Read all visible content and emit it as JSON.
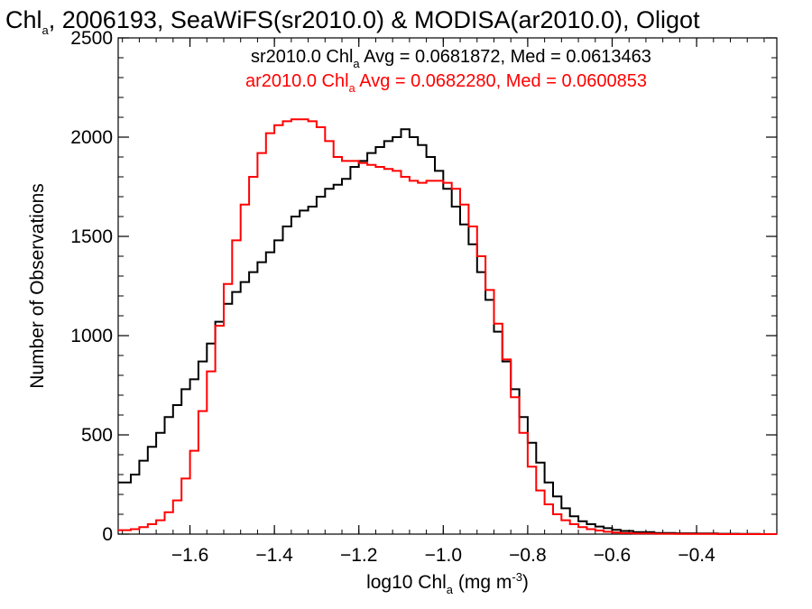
{
  "chart_data": {
    "type": "line",
    "title": {
      "main": "Chl",
      "sub": "a",
      "rest": ", 2006193, SeaWiFS(sr2010.0) & MODISA(ar2010.0), Oligot"
    },
    "xlabel": {
      "main": "log10 Chl",
      "sub": "a",
      "unit": " (mg m",
      "sup": "-3",
      "close": ")"
    },
    "ylabel": "Number of Observations",
    "xlim": [
      -1.77,
      -0.21
    ],
    "ylim": [
      0,
      2500
    ],
    "xticks": [
      -1.6,
      -1.4,
      -1.2,
      -1.0,
      -0.8,
      -0.6,
      -0.4
    ],
    "xtick_labels": [
      "−1.6",
      "−1.4",
      "−1.2",
      "−1.0",
      "−0.8",
      "−0.6",
      "−0.4"
    ],
    "yticks": [
      0,
      500,
      1000,
      1500,
      2000,
      2500
    ],
    "ytick_labels": [
      "0",
      "500",
      "1000",
      "1500",
      "2000",
      "2500"
    ],
    "legend": [
      {
        "pre": "sr2010.0 Chl",
        "sub": "a",
        "post": " Avg = 0.0681872, Med = 0.0613463",
        "color": "#000000"
      },
      {
        "pre": "ar2010.0 Chl",
        "sub": "a",
        "post": " Avg = 0.0682280, Med = 0.0600853",
        "color": "#ff0000"
      }
    ],
    "series": [
      {
        "color": "#000000",
        "x": [
          -1.77,
          -1.74,
          -1.72,
          -1.7,
          -1.68,
          -1.66,
          -1.64,
          -1.62,
          -1.6,
          -1.58,
          -1.56,
          -1.54,
          -1.52,
          -1.5,
          -1.48,
          -1.46,
          -1.44,
          -1.42,
          -1.4,
          -1.38,
          -1.36,
          -1.34,
          -1.32,
          -1.3,
          -1.28,
          -1.26,
          -1.24,
          -1.22,
          -1.2,
          -1.18,
          -1.16,
          -1.14,
          -1.12,
          -1.1,
          -1.08,
          -1.06,
          -1.04,
          -1.02,
          -1.0,
          -0.98,
          -0.96,
          -0.94,
          -0.92,
          -0.9,
          -0.88,
          -0.86,
          -0.84,
          -0.82,
          -0.8,
          -0.78,
          -0.76,
          -0.74,
          -0.72,
          -0.7,
          -0.68,
          -0.66,
          -0.64,
          -0.62,
          -0.6,
          -0.58,
          -0.55,
          -0.5,
          -0.45,
          -0.4,
          -0.35,
          -0.3,
          -0.25,
          -0.21
        ],
        "y": [
          260,
          300,
          370,
          440,
          510,
          590,
          650,
          730,
          780,
          870,
          960,
          1070,
          1160,
          1220,
          1270,
          1320,
          1370,
          1420,
          1480,
          1550,
          1600,
          1630,
          1650,
          1700,
          1740,
          1760,
          1790,
          1850,
          1880,
          1920,
          1950,
          1980,
          2000,
          2040,
          2000,
          1960,
          1900,
          1830,
          1740,
          1650,
          1560,
          1460,
          1320,
          1180,
          1020,
          870,
          730,
          590,
          460,
          360,
          260,
          190,
          130,
          90,
          65,
          50,
          38,
          30,
          22,
          16,
          10,
          6,
          4,
          3,
          2,
          1,
          0,
          0
        ]
      },
      {
        "color": "#ff0000",
        "x": [
          -1.77,
          -1.74,
          -1.72,
          -1.7,
          -1.68,
          -1.66,
          -1.64,
          -1.62,
          -1.6,
          -1.58,
          -1.56,
          -1.54,
          -1.52,
          -1.5,
          -1.48,
          -1.46,
          -1.44,
          -1.42,
          -1.4,
          -1.38,
          -1.36,
          -1.34,
          -1.32,
          -1.3,
          -1.28,
          -1.26,
          -1.24,
          -1.22,
          -1.2,
          -1.18,
          -1.16,
          -1.14,
          -1.12,
          -1.1,
          -1.08,
          -1.06,
          -1.04,
          -1.02,
          -1.0,
          -0.98,
          -0.96,
          -0.94,
          -0.92,
          -0.9,
          -0.88,
          -0.86,
          -0.84,
          -0.82,
          -0.8,
          -0.78,
          -0.76,
          -0.74,
          -0.72,
          -0.7,
          -0.68,
          -0.66,
          -0.64,
          -0.62,
          -0.6,
          -0.58,
          -0.55,
          -0.5,
          -0.45,
          -0.4,
          -0.35,
          -0.3,
          -0.25,
          -0.21
        ],
        "y": [
          20,
          25,
          35,
          50,
          70,
          110,
          170,
          280,
          420,
          620,
          820,
          1050,
          1260,
          1480,
          1660,
          1800,
          1920,
          2020,
          2060,
          2080,
          2090,
          2090,
          2080,
          2050,
          1980,
          1900,
          1880,
          1880,
          1870,
          1860,
          1850,
          1840,
          1830,
          1800,
          1780,
          1770,
          1780,
          1780,
          1770,
          1740,
          1660,
          1550,
          1400,
          1230,
          1060,
          880,
          690,
          510,
          340,
          220,
          150,
          100,
          70,
          50,
          35,
          25,
          18,
          12,
          8,
          5,
          3,
          2,
          1,
          1,
          0,
          0,
          0,
          0
        ]
      }
    ]
  }
}
